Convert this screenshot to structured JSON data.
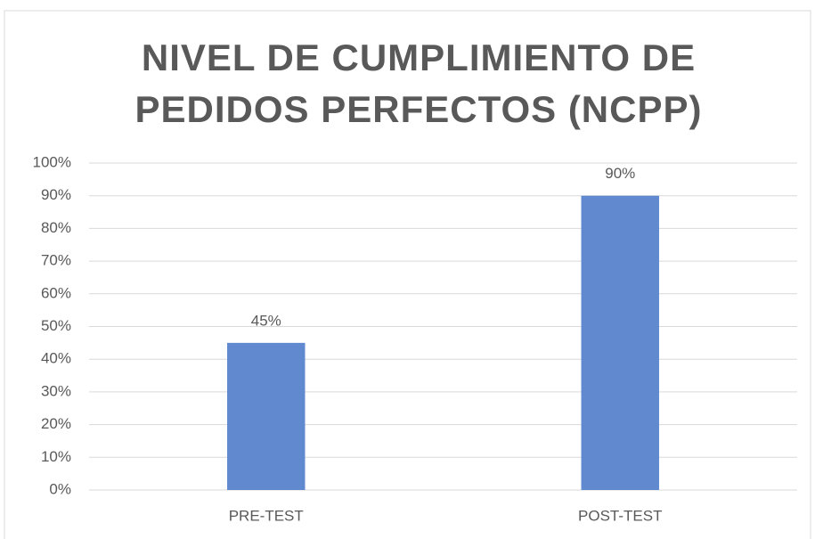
{
  "chart_data": {
    "type": "bar",
    "title": "NIVEL DE CUMPLIMIENTO DE PEDIDOS PERFECTOS (NCPP)",
    "categories": [
      "PRE-TEST",
      "POST-TEST"
    ],
    "values": [
      45,
      90
    ],
    "value_labels": [
      "45%",
      "90%"
    ],
    "color": "#6089cf",
    "ylim": [
      0,
      100
    ],
    "yticks": [
      {
        "value": 0,
        "label": "0%"
      },
      {
        "value": 10,
        "label": "10%"
      },
      {
        "value": 20,
        "label": "20%"
      },
      {
        "value": 30,
        "label": "30%"
      },
      {
        "value": 40,
        "label": "40%"
      },
      {
        "value": 50,
        "label": "50%"
      },
      {
        "value": 60,
        "label": "60%"
      },
      {
        "value": 70,
        "label": "70%"
      },
      {
        "value": 80,
        "label": "80%"
      },
      {
        "value": 90,
        "label": "90%"
      },
      {
        "value": 100,
        "label": "100%"
      }
    ],
    "grid": true
  }
}
